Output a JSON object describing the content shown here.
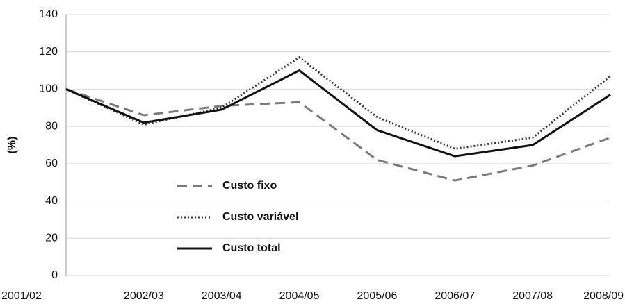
{
  "chart_data": {
    "type": "line",
    "y_label": "(%)",
    "categories": [
      "2001/02",
      "2002/03",
      "2003/04",
      "2004/05",
      "2005/06",
      "2006/07",
      "2007/08",
      "2008/09"
    ],
    "series": [
      {
        "name": "Custo fixo",
        "color": "#7a7a7a",
        "dash": "dashed",
        "values": [
          100,
          86,
          91,
          93,
          62,
          51,
          59,
          74
        ]
      },
      {
        "name": "Custo variável",
        "color": "#333333",
        "dash": "dotted",
        "values": [
          100,
          81,
          90,
          117,
          85,
          68,
          74,
          107
        ]
      },
      {
        "name": "Custo total",
        "color": "#111111",
        "dash": "solid",
        "values": [
          100,
          82,
          89,
          110,
          78,
          64,
          70,
          97
        ]
      }
    ],
    "ylim": [
      0,
      140
    ],
    "yticks": [
      0,
      20,
      40,
      60,
      80,
      100,
      120,
      140
    ],
    "grid": true
  }
}
